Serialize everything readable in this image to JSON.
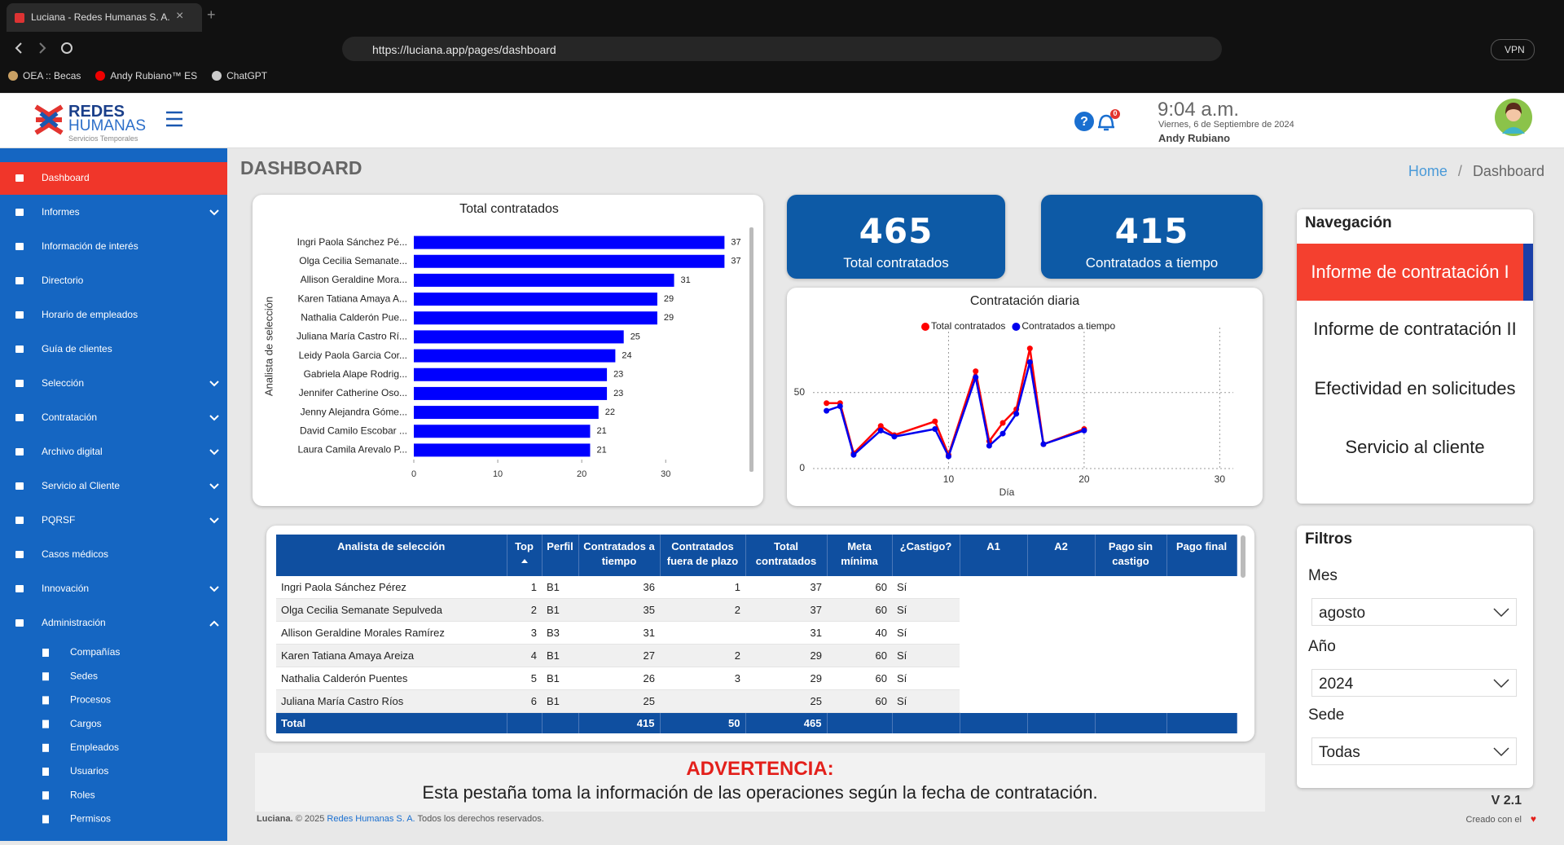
{
  "browser": {
    "tab_title": "Luciana - Redes Humanas S. A.",
    "url": "https://luciana.app/pages/dashboard",
    "bookmarks": [
      "OEA :: Becas",
      "Andy Rubiano™ ES",
      "ChatGPT"
    ],
    "vpn": "VPN"
  },
  "header": {
    "logo_top": "REDES",
    "logo_bottom": "HUMANAS",
    "logo_tagline": "Servicios Temporales",
    "notifications": 0,
    "time": "9:04 a.m.",
    "date": "Viernes, 6 de Septiembre de 2024",
    "user": "Andy Rubiano"
  },
  "sidebar": {
    "active": 0,
    "items": [
      {
        "label": "Dashboard",
        "expandable": false
      },
      {
        "label": "Informes",
        "expandable": true
      },
      {
        "label": "Información de interés",
        "expandable": false
      },
      {
        "label": "Directorio",
        "expandable": false
      },
      {
        "label": "Horario de empleados",
        "expandable": false
      },
      {
        "label": "Guía de clientes",
        "expandable": false
      },
      {
        "label": "Selección",
        "expandable": true
      },
      {
        "label": "Contratación",
        "expandable": true
      },
      {
        "label": "Archivo digital",
        "expandable": true
      },
      {
        "label": "Servicio al Cliente",
        "expandable": true
      },
      {
        "label": "PQRSF",
        "expandable": true
      },
      {
        "label": "Casos médicos",
        "expandable": false
      },
      {
        "label": "Innovación",
        "expandable": true
      },
      {
        "label": "Administración",
        "expandable": true,
        "expanded": true
      }
    ],
    "subitems": [
      "Compañías",
      "Sedes",
      "Procesos",
      "Cargos",
      "Empleados",
      "Usuarios",
      "Roles",
      "Permisos"
    ]
  },
  "page": {
    "title": "DASHBOARD",
    "breadcrumb": [
      "Home",
      "Dashboard"
    ]
  },
  "chart_data": [
    {
      "type": "hbar",
      "title": "Total contratados",
      "y_label": "Analista de selección",
      "categories": [
        "Ingri Paola Sánchez Pé...",
        "Olga Cecilia Semanate...",
        "Allison Geraldine Mora...",
        "Karen Tatiana Amaya A...",
        "Nathalia Calderón Pue...",
        "Juliana María Castro Rí...",
        "Leidy Paola Garcia Cor...",
        "Gabriela Alape Rodrig...",
        "Jennifer Catherine Oso...",
        "Jenny Alejandra Góme...",
        "David Camilo Escobar ...",
        "Laura Camila Arevalo P..."
      ],
      "values": [
        37,
        37,
        31,
        29,
        29,
        25,
        24,
        23,
        23,
        22,
        21,
        21
      ],
      "color": "#0000ff",
      "xlim": [
        0,
        39
      ],
      "xticks": [
        0,
        10,
        20,
        30
      ],
      "grid": false
    },
    {
      "type": "line",
      "title": "Contratación diaria",
      "x_label": "Día",
      "x": [
        1,
        2,
        3,
        5,
        6,
        9,
        10,
        12,
        13,
        14,
        15,
        16,
        17,
        20
      ],
      "series": [
        {
          "name": "Total contratados",
          "color": "#ff0000",
          "values": [
            43,
            43,
            10,
            28,
            22,
            31,
            9,
            64,
            18,
            30,
            39,
            79,
            16,
            26
          ]
        },
        {
          "name": "Contratados a tiempo",
          "color": "#0000ee",
          "values": [
            38,
            41,
            9,
            25,
            21,
            26,
            8,
            60,
            15,
            23,
            36,
            70,
            16,
            25
          ]
        }
      ],
      "xlim": [
        0,
        31
      ],
      "xticks": [
        10,
        20,
        30
      ],
      "ylim": [
        0,
        82
      ],
      "yticks": [
        0,
        50
      ],
      "grid": true
    }
  ],
  "kpis": [
    {
      "value": 465,
      "label": "Total contratados"
    },
    {
      "value": 415,
      "label": "Contratados a tiempo"
    }
  ],
  "navigation": {
    "title": "Navegación",
    "active": 0,
    "items": [
      "Informe de contratación I",
      "Informe de contratación II",
      "Efectividad en solicitudes",
      "Servicio al cliente"
    ]
  },
  "table": {
    "columns": [
      "Analista de selección",
      "Top",
      "Perfil",
      "Contratados a tiempo",
      "Contratados fuera de plazo",
      "Total contratados",
      "Meta mínima",
      "¿Castigo?",
      "A1",
      "A2",
      "Pago sin castigo",
      "Pago final"
    ],
    "sorted_column": 1,
    "rows": [
      [
        "Ingri Paola Sánchez Pérez",
        1,
        "B1",
        36,
        1,
        37,
        60,
        "Sí",
        null,
        null,
        null,
        null
      ],
      [
        "Olga Cecilia Semanate Sepulveda",
        2,
        "B1",
        35,
        2,
        37,
        60,
        "Sí",
        null,
        null,
        null,
        null
      ],
      [
        "Allison Geraldine Morales Ramírez",
        3,
        "B3",
        31,
        null,
        31,
        40,
        "Sí",
        null,
        null,
        null,
        null
      ],
      [
        "Karen Tatiana Amaya Areiza",
        4,
        "B1",
        27,
        2,
        29,
        60,
        "Sí",
        null,
        null,
        null,
        null
      ],
      [
        "Nathalia Calderón Puentes",
        5,
        "B1",
        26,
        3,
        29,
        60,
        "Sí",
        null,
        null,
        null,
        null
      ],
      [
        "Juliana María Castro Ríos",
        6,
        "B1",
        25,
        null,
        25,
        60,
        "Sí",
        null,
        null,
        null,
        null
      ]
    ],
    "total": [
      "Total",
      null,
      null,
      415,
      50,
      465,
      null,
      null,
      null,
      null,
      null,
      null
    ]
  },
  "filters": {
    "title": "Filtros",
    "fields": [
      {
        "label": "Mes",
        "value": "agosto"
      },
      {
        "label": "Año",
        "value": "2024"
      },
      {
        "label": "Sede",
        "value": "Todas"
      }
    ]
  },
  "warning": {
    "title": "ADVERTENCIA:",
    "text": "Esta pestaña toma la información de las operaciones según la fecha de contratación."
  },
  "footer": {
    "brand": "Luciana.",
    "copyright": "© 2025",
    "company": "Redes Humanas S. A.",
    "rights": "Todos los derechos reservados.",
    "version": "V 2.1",
    "credit": "Creado con el"
  }
}
